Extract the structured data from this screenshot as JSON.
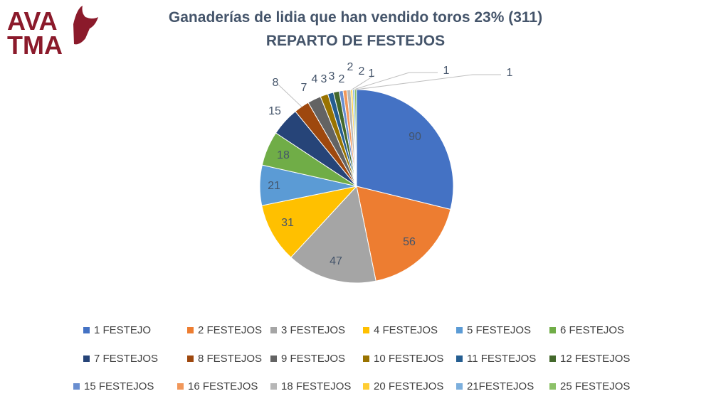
{
  "logo": {
    "text": "AVA TMA",
    "color": "#8B1A2B"
  },
  "chart_data": {
    "type": "pie",
    "title": "Ganaderías de lidia que han vendido toros 23% (311)",
    "subtitle": "REPARTO DE FESTEJOS",
    "legend_position": "bottom",
    "categories": [
      "1 FESTEJO",
      "2 FESTEJOS",
      "3 FESTEJOS",
      "4 FESTEJOS",
      "5 FESTEJOS",
      "6 FESTEJOS",
      "7 FESTEJOS",
      "8 FESTEJOS",
      "9 FESTEJOS",
      "10 FESTEJOS",
      "11 FESTEJOS",
      "12 FESTEJOS",
      "15 FESTEJOS",
      "16 FESTEJOS",
      "18 FESTEJOS",
      "20 FESTEJOS",
      "21FESTEJOS",
      "25 FESTEJOS"
    ],
    "values": [
      90,
      56,
      47,
      31,
      21,
      18,
      15,
      8,
      7,
      4,
      3,
      3,
      2,
      2,
      2,
      1,
      1,
      1
    ],
    "colors": [
      "#4472C4",
      "#ED7D31",
      "#A5A5A5",
      "#FFC000",
      "#5B9BD5",
      "#70AD47",
      "#264478",
      "#9E480E",
      "#636363",
      "#997300",
      "#255E91",
      "#43682B",
      "#698ED0",
      "#F1975A",
      "#B7B7B7",
      "#FFCD33",
      "#7CAFDD",
      "#8CC168"
    ]
  }
}
